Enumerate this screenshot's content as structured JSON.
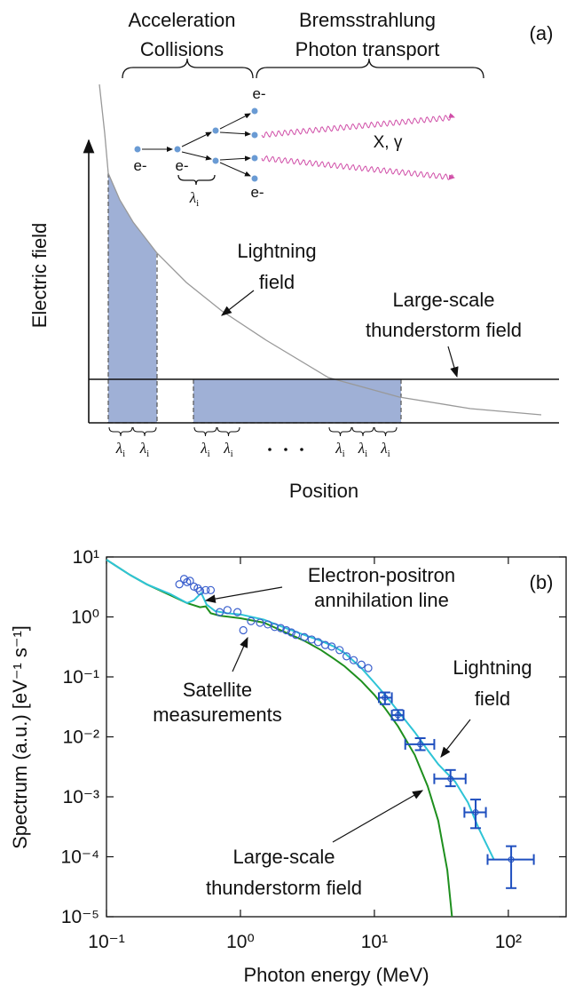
{
  "diagram": {
    "panel_label": "(a)",
    "stages": [
      {
        "lines": [
          "Acceleration",
          "Collisions"
        ]
      },
      {
        "lines": [
          "Bremsstrahlung",
          "Photon transport"
        ]
      }
    ],
    "electron_labels": [
      "e-",
      "e-",
      "e-",
      "e-"
    ],
    "photon_label": "X, γ",
    "mean_free_path": {
      "symbol": "λ",
      "subscript": "i"
    },
    "y_axis_label": "Electric field",
    "x_axis_label": "Position",
    "curve_labels": [
      {
        "lines": [
          "Lightning",
          "field"
        ]
      },
      {
        "lines": [
          "Large-scale",
          "thunderstorm field"
        ]
      }
    ]
  },
  "chart_data": {
    "type": "line",
    "panel_label": "(b)",
    "xlabel": "Photon energy (MeV)",
    "ylabel": "Spectrum (a.u.) [eV⁻¹ s⁻¹]",
    "log_x": true,
    "log_y": true,
    "grid": false,
    "xlim": [
      0.1,
      270
    ],
    "ylim": [
      1e-05,
      10
    ],
    "xticks": [
      {
        "value": 0.1,
        "label": "10⁻¹"
      },
      {
        "value": 1,
        "label": "10⁰"
      },
      {
        "value": 10,
        "label": "10¹"
      },
      {
        "value": 100,
        "label": "10²"
      }
    ],
    "yticks": [
      {
        "value": 1e-05,
        "label": "10⁻⁵"
      },
      {
        "value": 0.0001,
        "label": "10⁻⁴"
      },
      {
        "value": 0.001,
        "label": "10⁻³"
      },
      {
        "value": 0.01,
        "label": "10⁻²"
      },
      {
        "value": 0.1,
        "label": "10⁻¹"
      },
      {
        "value": 1,
        "label": "10⁰"
      },
      {
        "value": 10,
        "label": "10¹"
      }
    ],
    "series": [
      {
        "type": "line",
        "color": "#1e8f1e",
        "x": [
          0.1,
          0.15,
          0.2,
          0.3,
          0.4,
          0.5,
          0.55,
          0.6,
          0.7,
          1,
          1.5,
          2,
          3,
          4,
          5,
          6,
          8,
          10,
          12,
          15,
          20,
          25,
          30,
          35,
          38
        ],
        "values": [
          9,
          5,
          3.5,
          2.3,
          1.7,
          1.45,
          1.5,
          1.15,
          1.05,
          0.95,
          0.8,
          0.6,
          0.4,
          0.28,
          0.2,
          0.15,
          0.085,
          0.05,
          0.03,
          0.015,
          0.005,
          0.0015,
          0.0004,
          6e-05,
          1e-05
        ]
      },
      {
        "type": "line",
        "color": "#2ec4d6",
        "x": [
          0.1,
          0.15,
          0.2,
          0.3,
          0.4,
          0.45,
          0.51,
          0.56,
          0.65,
          0.8,
          1,
          1.5,
          2,
          3,
          4,
          5,
          6,
          8,
          10,
          12,
          15,
          20,
          25,
          30,
          40,
          50,
          60,
          78
        ],
        "values": [
          9,
          5,
          3.5,
          2.4,
          1.7,
          1.9,
          2.5,
          1.6,
          1.25,
          1.15,
          1.1,
          0.9,
          0.7,
          0.5,
          0.4,
          0.32,
          0.25,
          0.14,
          0.08,
          0.05,
          0.027,
          0.012,
          0.006,
          0.0035,
          0.0018,
          0.0008,
          0.0003,
          9e-05
        ]
      },
      {
        "type": "scatter",
        "color": "#3a5fcd",
        "x": [
          0.35,
          0.38,
          0.4,
          0.42,
          0.45,
          0.48,
          0.5,
          0.55,
          0.6,
          0.7,
          0.8,
          0.95,
          1.05,
          1.2,
          1.4,
          1.6,
          1.8,
          2,
          2.2,
          2.4,
          2.6,
          3,
          3.4,
          3.8,
          4.3,
          4.8,
          5.5,
          6.2,
          7,
          8,
          9
        ],
        "values": [
          3.5,
          4.3,
          3.8,
          4,
          3.2,
          3,
          2.7,
          2.8,
          2.8,
          1.2,
          1.3,
          1.2,
          0.6,
          0.85,
          0.8,
          0.75,
          0.68,
          0.65,
          0.6,
          0.55,
          0.5,
          0.46,
          0.42,
          0.38,
          0.34,
          0.32,
          0.28,
          0.22,
          0.19,
          0.16,
          0.14
        ]
      },
      {
        "type": "errorbar",
        "color": "#1f4fbf",
        "x": [
          12,
          15,
          22,
          37,
          57,
          105
        ],
        "values": [
          0.045,
          0.023,
          0.0075,
          0.002,
          0.00055,
          9e-05
        ],
        "x_low": [
          10.8,
          13.5,
          17,
          28,
          47,
          70
        ],
        "x_high": [
          13.5,
          16.5,
          28,
          48,
          68,
          155
        ],
        "y_low": [
          0.035,
          0.019,
          0.006,
          0.0015,
          0.0003,
          3e-05
        ],
        "y_high": [
          0.055,
          0.028,
          0.0095,
          0.0028,
          0.0009,
          0.00015
        ]
      }
    ],
    "annotations": [
      {
        "lines": [
          "Electron-positron",
          "annihilation line"
        ]
      },
      {
        "lines": [
          "Satellite",
          "measurements"
        ]
      },
      {
        "lines": [
          "Lightning",
          "field"
        ]
      },
      {
        "lines": [
          "Large-scale",
          "thunderstorm field"
        ]
      }
    ]
  }
}
